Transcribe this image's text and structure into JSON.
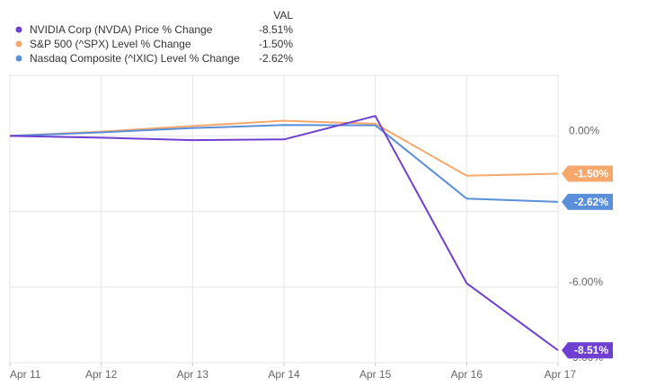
{
  "chart_data": {
    "type": "line",
    "categories": [
      "Apr 11",
      "Apr 12",
      "Apr 13",
      "Apr 14",
      "Apr 15",
      "Apr 16",
      "Apr 17"
    ],
    "legend_header": "VAL",
    "series": [
      {
        "name": "NVIDIA Corp (NVDA) Price % Change",
        "value_label": "-8.51%",
        "color": "#6f3fd1",
        "values": [
          0.0,
          -0.07,
          -0.17,
          -0.14,
          0.79,
          -5.85,
          -8.51
        ]
      },
      {
        "name": "S&P 500 (^SPX) Level % Change",
        "value_label": "-1.50%",
        "color": "#f6a86c",
        "values": [
          0.0,
          0.17,
          0.39,
          0.6,
          0.48,
          -1.58,
          -1.5
        ]
      },
      {
        "name": "Nasdaq Composite (^IXIC) Level % Change",
        "value_label": "-2.62%",
        "color": "#5b8fd9",
        "values": [
          0.0,
          0.14,
          0.31,
          0.43,
          0.42,
          -2.49,
          -2.62
        ]
      }
    ],
    "y_ticks": [
      {
        "value": 0.0,
        "label": "0.00%"
      },
      {
        "value": -3.0,
        "label": ""
      },
      {
        "value": -6.0,
        "label": "-6.00%"
      },
      {
        "value": -9.0,
        "label": "-9.00%"
      }
    ],
    "ylim": [
      -9.0,
      2.4
    ],
    "grid": true,
    "legend_position": "top-left"
  }
}
